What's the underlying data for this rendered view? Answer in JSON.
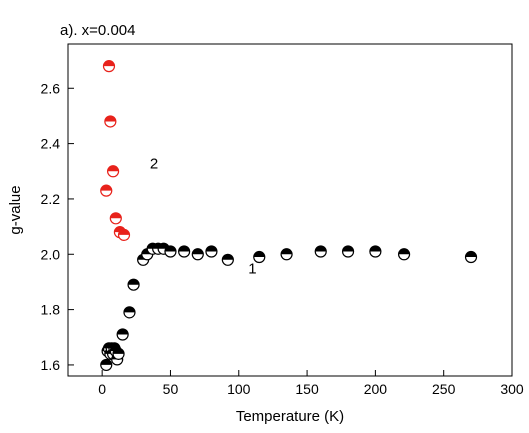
{
  "chart_data": {
    "type": "scatter",
    "title": "a). x=0.004",
    "xlabel": "Temperature (K)",
    "ylabel": "g-value",
    "xlim": [
      -25,
      300
    ],
    "ylim": [
      1.56,
      2.76
    ],
    "xticks": [
      0,
      50,
      100,
      150,
      200,
      250,
      300
    ],
    "yticks": [
      1.6,
      1.8,
      2.0,
      2.2,
      2.4,
      2.6
    ],
    "xtick_labels": [
      "0",
      "50",
      "100",
      "150",
      "200",
      "250",
      "300"
    ],
    "ytick_labels": [
      "1.6",
      "1.8",
      "2.0",
      "2.2",
      "2.4",
      "2.6"
    ],
    "grid": false,
    "series": [
      {
        "label": "1",
        "color": "#000000",
        "marker": "circle-half-filled-top",
        "x": [
          3,
          4,
          5,
          6,
          7,
          8,
          9,
          10,
          11,
          12,
          15,
          20,
          23,
          30,
          33,
          37,
          41,
          45,
          50,
          60,
          70,
          80,
          92,
          115,
          135,
          160,
          180,
          200,
          221,
          270
        ],
        "y": [
          1.6,
          1.65,
          1.66,
          1.64,
          1.66,
          1.64,
          1.66,
          1.65,
          1.62,
          1.64,
          1.71,
          1.79,
          1.89,
          1.98,
          2.0,
          2.02,
          2.02,
          2.02,
          2.01,
          2.01,
          2.0,
          2.01,
          1.98,
          1.99,
          2.0,
          2.01,
          2.01,
          2.01,
          2.0,
          1.99
        ]
      },
      {
        "label": "2",
        "color": "#e8221b",
        "marker": "circle-half-filled-top",
        "x": [
          3,
          5,
          6,
          8,
          10,
          13,
          16
        ],
        "y": [
          2.23,
          2.68,
          2.48,
          2.3,
          2.13,
          2.08,
          2.07
        ]
      }
    ],
    "annotations": [
      {
        "text": "1",
        "x": 110,
        "y": 1.93
      },
      {
        "text": "2",
        "x": 38,
        "y": 2.31
      }
    ]
  }
}
